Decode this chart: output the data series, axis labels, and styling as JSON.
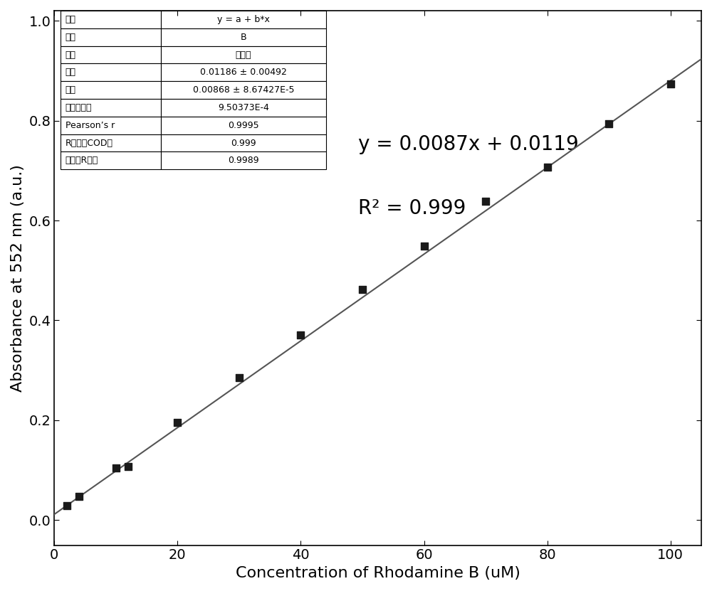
{
  "x_data": [
    2,
    4,
    10,
    12,
    20,
    30,
    40,
    50,
    60,
    70,
    80,
    90,
    100
  ],
  "y_data": [
    0.029,
    0.048,
    0.104,
    0.107,
    0.195,
    0.285,
    0.371,
    0.462,
    0.549,
    0.638,
    0.707,
    0.793,
    0.874
  ],
  "slope": 0.00868,
  "intercept": 0.01186,
  "xlabel": "Concentration of Rhodamine B (uM)",
  "ylabel": "Absorbance at 552 nm (a.u.)",
  "equation_text": "y = 0.0087x + 0.0119",
  "r2_text": "R² = 0.999",
  "xlim": [
    0,
    105
  ],
  "ylim": [
    -0.05,
    1.02
  ],
  "xticks": [
    0,
    20,
    40,
    60,
    80,
    100
  ],
  "yticks": [
    0.0,
    0.2,
    0.4,
    0.6,
    0.8,
    1.0
  ],
  "marker_color": "#1a1a1a",
  "line_color": "#555555",
  "table_rows": [
    [
      "方程",
      "y = a + b*x"
    ],
    [
      "绘图",
      "B"
    ],
    [
      "权重",
      "不加权"
    ],
    [
      "截距",
      "0.01186 ± 0.00492"
    ],
    [
      "斜率",
      "0.00868 ± 8.67427E-5"
    ],
    [
      "残差平方和",
      "9.50373E-4"
    ],
    [
      "Pearson’s r",
      "0.9995"
    ],
    [
      "R平方（COD）",
      "0.999"
    ],
    [
      "调整后R平方",
      "0.9989"
    ]
  ],
  "background_color": "#ffffff",
  "label_fontsize": 16,
  "tick_fontsize": 14,
  "annot_fontsize": 20,
  "table_fontsize": 9
}
